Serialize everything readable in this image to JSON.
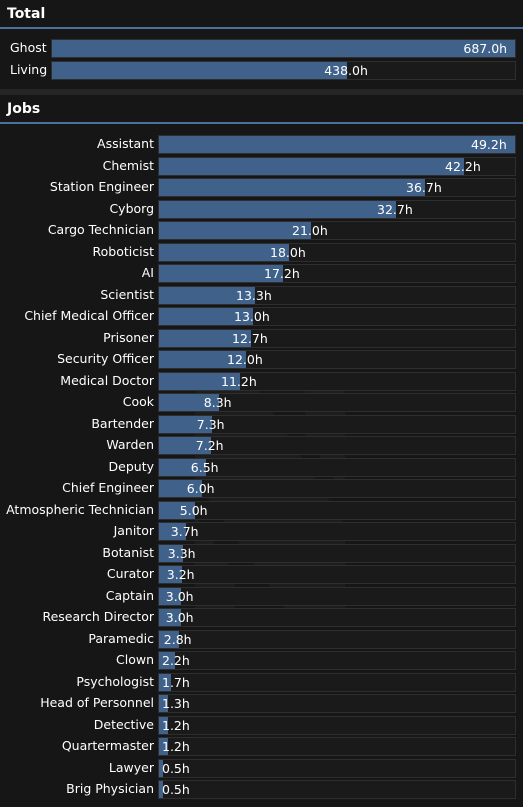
{
  "total": {
    "title": "Total",
    "max": 687.0,
    "rows": [
      {
        "label": "Ghost",
        "hours": 687.0,
        "value": "687.0h"
      },
      {
        "label": "Living",
        "hours": 438.0,
        "value": "438.0h"
      }
    ]
  },
  "jobs": {
    "title": "Jobs",
    "max": 49.2,
    "rows": [
      {
        "label": "Assistant",
        "hours": 49.2,
        "value": "49.2h"
      },
      {
        "label": "Chemist",
        "hours": 42.2,
        "value": "42.2h"
      },
      {
        "label": "Station Engineer",
        "hours": 36.7,
        "value": "36.7h"
      },
      {
        "label": "Cyborg",
        "hours": 32.7,
        "value": "32.7h"
      },
      {
        "label": "Cargo Technician",
        "hours": 21.0,
        "value": "21.0h"
      },
      {
        "label": "Roboticist",
        "hours": 18.0,
        "value": "18.0h"
      },
      {
        "label": "AI",
        "hours": 17.2,
        "value": "17.2h"
      },
      {
        "label": "Scientist",
        "hours": 13.3,
        "value": "13.3h"
      },
      {
        "label": "Chief Medical Officer",
        "hours": 13.0,
        "value": "13.0h"
      },
      {
        "label": "Prisoner",
        "hours": 12.7,
        "value": "12.7h"
      },
      {
        "label": "Security Officer",
        "hours": 12.0,
        "value": "12.0h"
      },
      {
        "label": "Medical Doctor",
        "hours": 11.2,
        "value": "11.2h"
      },
      {
        "label": "Cook",
        "hours": 8.3,
        "value": "8.3h"
      },
      {
        "label": "Bartender",
        "hours": 7.3,
        "value": "7.3h"
      },
      {
        "label": "Warden",
        "hours": 7.2,
        "value": "7.2h"
      },
      {
        "label": "Deputy",
        "hours": 6.5,
        "value": "6.5h"
      },
      {
        "label": "Chief Engineer",
        "hours": 6.0,
        "value": "6.0h"
      },
      {
        "label": "Atmospheric Technician",
        "hours": 5.0,
        "value": "5.0h"
      },
      {
        "label": "Janitor",
        "hours": 3.7,
        "value": "3.7h"
      },
      {
        "label": "Botanist",
        "hours": 3.3,
        "value": "3.3h"
      },
      {
        "label": "Curator",
        "hours": 3.2,
        "value": "3.2h"
      },
      {
        "label": "Captain",
        "hours": 3.0,
        "value": "3.0h"
      },
      {
        "label": "Research Director",
        "hours": 3.0,
        "value": "3.0h"
      },
      {
        "label": "Paramedic",
        "hours": 2.8,
        "value": "2.8h"
      },
      {
        "label": "Clown",
        "hours": 2.2,
        "value": "2.2h"
      },
      {
        "label": "Psychologist",
        "hours": 1.7,
        "value": "1.7h"
      },
      {
        "label": "Head of Personnel",
        "hours": 1.3,
        "value": "1.3h"
      },
      {
        "label": "Detective",
        "hours": 1.2,
        "value": "1.2h"
      },
      {
        "label": "Quartermaster",
        "hours": 1.2,
        "value": "1.2h"
      },
      {
        "label": "Lawyer",
        "hours": 0.5,
        "value": "0.5h"
      },
      {
        "label": "Brig Physician",
        "hours": 0.5,
        "value": "0.5h"
      }
    ]
  },
  "colors": {
    "bar_fill": "#40628a",
    "bar_track": "#1a1a1a",
    "accent": "#4972a1",
    "section_bg": "#161616"
  },
  "icons": {
    "watermark": "nanotrasen-logo-watermark"
  }
}
